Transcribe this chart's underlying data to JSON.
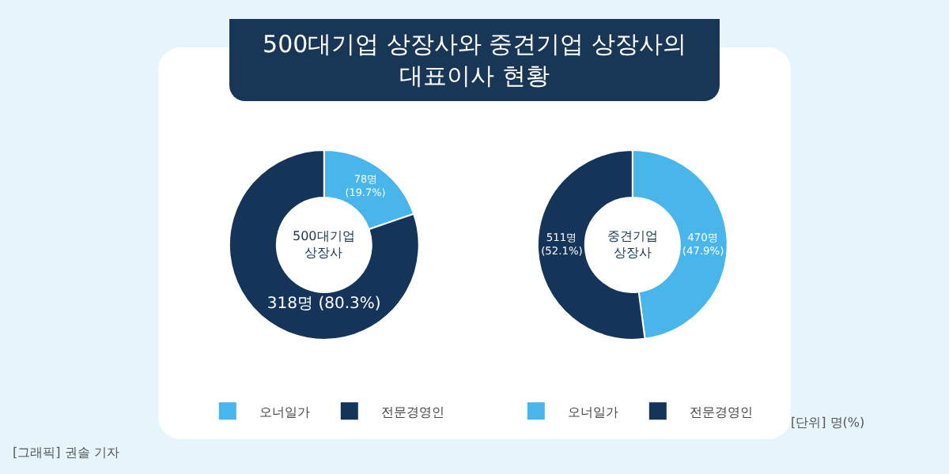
{
  "chart_data": [
    {
      "type": "donut",
      "title": "500대기업 상장사와 중견기업 상장사의\n대표이사 현황",
      "categories": [
        "오너일가",
        "전문경영인"
      ],
      "values": [
        78,
        318
      ],
      "colors": [
        "#48b6ea",
        "#14345a"
      ],
      "value_labels": [
        "78명\n(19.7%)",
        "318명 (80.3%)"
      ],
      "annotations": [
        "500대기업\n상장사",
        "[그래픽] 권솔 기자"
      ],
      "legend": "bottom right"
    },
    {
      "type": "donut",
      "categories": [
        "오너일가",
        "전문경영인"
      ],
      "values": [
        470,
        511
      ],
      "colors": [
        "#48b6ea",
        "#14345a"
      ],
      "value_labels": [
        "470명\n(47.9%)",
        "511명\n(52.1%)"
      ],
      "annotations": [
        "중견기업\n상장사",
        "[단위] 명(%)"
      ],
      "legend": "bottom"
    }
  ]
}
